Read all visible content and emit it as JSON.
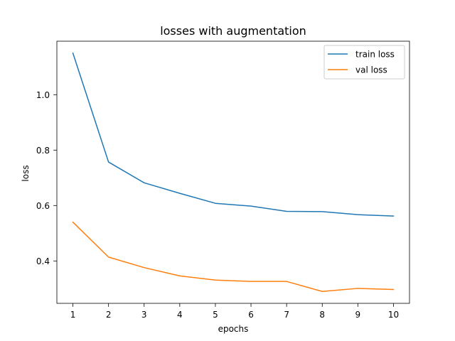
{
  "chart_data": {
    "type": "line",
    "title": "losses with augmentation",
    "xlabel": "epochs",
    "ylabel": "loss",
    "x": [
      1,
      2,
      3,
      4,
      5,
      6,
      7,
      8,
      9,
      10
    ],
    "xlim": [
      0.55,
      10.45
    ],
    "ylim": [
      0.247,
      1.193
    ],
    "xticks": [
      1,
      2,
      3,
      4,
      5,
      6,
      7,
      8,
      9,
      10
    ],
    "yticks": [
      0.4,
      0.6,
      0.8,
      1.0
    ],
    "ytick_labels": [
      "0.4",
      "0.6",
      "0.8",
      "1.0"
    ],
    "grid": false,
    "legend_position": "top-right",
    "series": [
      {
        "name": "train loss",
        "color": "#1f77b4",
        "values": [
          1.15,
          0.757,
          0.682,
          0.644,
          0.608,
          0.598,
          0.579,
          0.578,
          0.567,
          0.562
        ]
      },
      {
        "name": "val loss",
        "color": "#ff7f0e",
        "values": [
          0.54,
          0.414,
          0.376,
          0.346,
          0.331,
          0.326,
          0.326,
          0.29,
          0.301,
          0.297
        ]
      }
    ]
  }
}
